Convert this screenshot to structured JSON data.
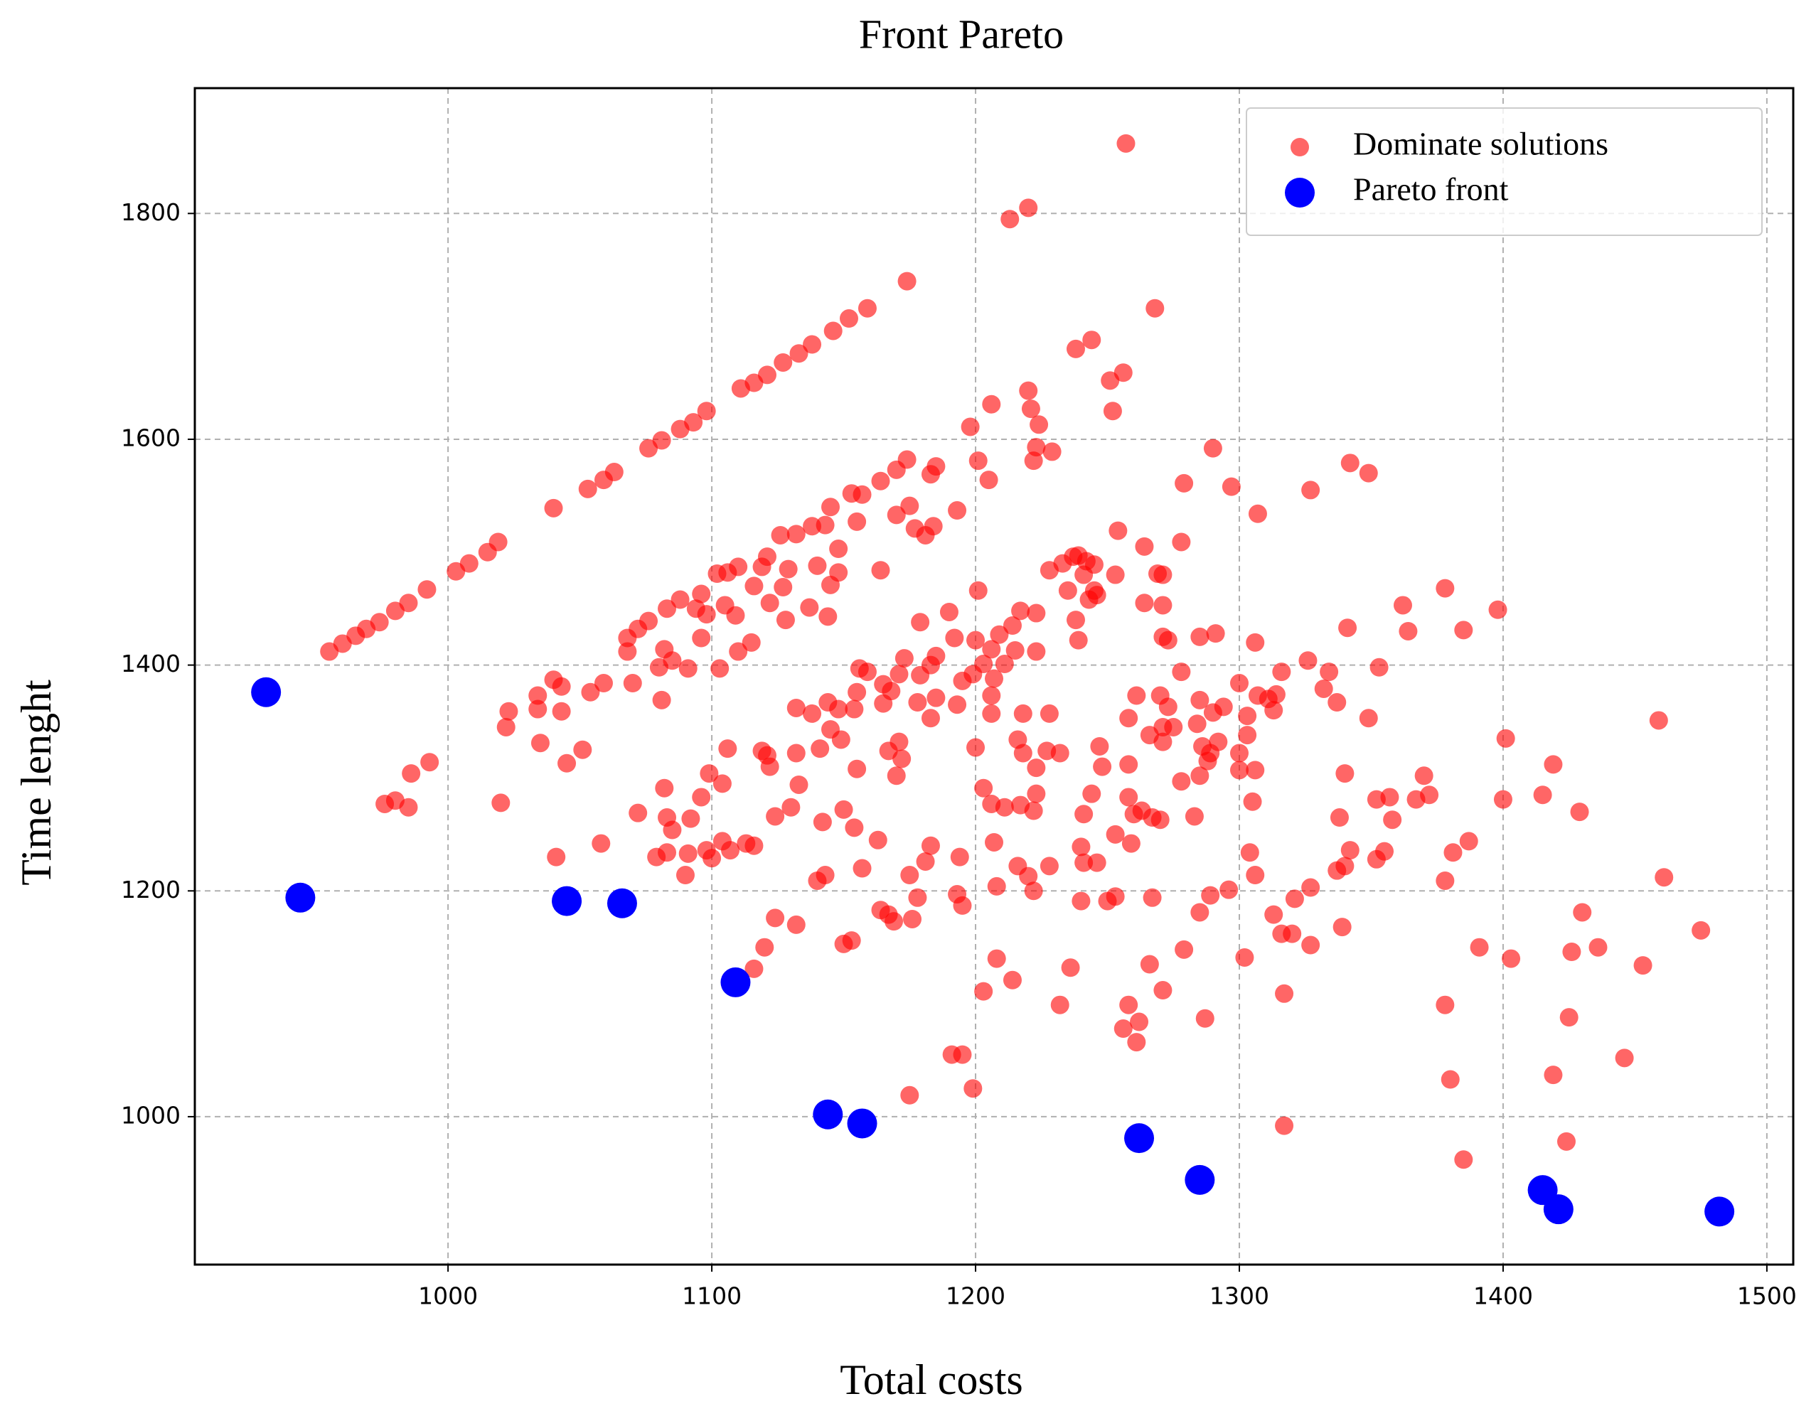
{
  "chart_data": {
    "type": "scatter",
    "title": "Front Pareto",
    "xlabel": "Total costs",
    "ylabel": "Time lenght",
    "xlim": [
      904,
      1510
    ],
    "ylim": [
      869,
      1911
    ],
    "xticks": [
      1000,
      1100,
      1200,
      1300,
      1400,
      1500
    ],
    "yticks": [
      1000,
      1200,
      1400,
      1600,
      1800
    ],
    "grid": true,
    "legend": "upper right",
    "series": [
      {
        "name": "Dominate solutions",
        "color": "#ff0000",
        "opacity": 0.6,
        "x": [
          955,
          960,
          965,
          969,
          974,
          980,
          985,
          992,
          1003,
          1008,
          1015,
          1019,
          1040,
          1053,
          1059,
          1063,
          1076,
          1081,
          1088,
          1093,
          1098,
          1111,
          1116,
          1121,
          1127,
          1133,
          1138,
          1146,
          1152,
          1159,
          1174,
          1257,
          1220,
          1213,
          1268,
          1244,
          1238,
          1256,
          1251,
          1220,
          1206,
          1252,
          1221,
          1224,
          1198,
          1229,
          1223,
          1222,
          1290,
          1279,
          1297,
          1307,
          1327,
          1342,
          1349,
          1201,
          1185,
          1183,
          1170,
          1174,
          1164,
          1157,
          1153,
          1155,
          1145,
          1143,
          1138,
          1175,
          1170,
          1177,
          1184,
          1193,
          1181,
          1132,
          1126,
          1121,
          1119,
          1110,
          1106,
          1102,
          1096,
          1094,
          1088,
          1083,
          1076,
          1072,
          1068,
          1068,
          1082,
          1085,
          1096,
          1105,
          1109,
          1098,
          1148,
          1148,
          1145,
          1140,
          1129,
          1116,
          1122,
          1127,
          1137,
          1128,
          1115,
          1110,
          1164,
          1144,
          1205,
          1200,
          1206,
          1203,
          1211,
          1215,
          1217,
          1223,
          1223,
          1214,
          1209,
          1201,
          1190,
          1192,
          1179,
          1185,
          1173,
          1179,
          1183,
          1171,
          1168,
          1165,
          1156,
          1159,
          1155,
          1165,
          1178,
          1185,
          1183,
          1193,
          1195,
          1199,
          1207,
          1206,
          1206,
          1218,
          1228,
          1216,
          1223,
          1218,
          1227,
          1232,
          1200,
          1203,
          1206,
          1211,
          1217,
          1223,
          1222,
          1247,
          1248,
          1258,
          1258,
          1261,
          1270,
          1273,
          1266,
          1271,
          1275,
          1271,
          1284,
          1285,
          1290,
          1294,
          1300,
          1303,
          1303,
          1286,
          1289,
          1292,
          1288,
          1278,
          1285,
          1300,
          1306,
          1300,
          1305,
          1307,
          1311,
          1313,
          1316,
          1314,
          1326,
          1334,
          1332,
          1337,
          1349,
          1353,
          1341,
          1306,
          1291,
          1285,
          1271,
          1273,
          1278,
          1264,
          1271,
          1269,
          1271,
          1264,
          1278,
          1254,
          1253,
          1245,
          1243,
          1246,
          1242,
          1245,
          1237,
          1239,
          1233,
          1228,
          1241,
          1235,
          1238,
          1239,
          1103,
          1091,
          1080,
          1040,
          1043,
          1034,
          1034,
          1043,
          1054,
          1059,
          1070,
          1081,
          1023,
          1022,
          1035,
          1045,
          1051,
          993,
          986,
          976,
          980,
          985,
          1020,
          1072,
          1041,
          1058,
          1082,
          1083,
          1085,
          1079,
          1083,
          1092,
          1090,
          1091,
          1096,
          1099,
          1104,
          1106,
          1098,
          1100,
          1104,
          1107,
          1113,
          1116,
          1119,
          1122,
          1121,
          1124,
          1130,
          1132,
          1133,
          1132,
          1138,
          1141,
          1142,
          1140,
          1143,
          1145,
          1149,
          1144,
          1148,
          1150,
          1154,
          1155,
          1157,
          1163,
          1154,
          1167,
          1171,
          1172,
          1170,
          1175,
          1178,
          1181,
          1183,
          1164,
          1167,
          1169,
          1176,
          1193,
          1195,
          1194,
          1207,
          1208,
          1216,
          1220,
          1222,
          1228,
          1240,
          1241,
          1246,
          1250,
          1253,
          1253,
          1259,
          1258,
          1260,
          1263,
          1267,
          1270,
          1267,
          1241,
          1244,
          1240,
          1283,
          1289,
          1296,
          1285,
          1279,
          1266,
          1271,
          1258,
          1256,
          1262,
          1261,
          1287,
          1302,
          1317,
          1306,
          1304,
          1313,
          1316,
          1320,
          1321,
          1327,
          1327,
          1337,
          1340,
          1339,
          1338,
          1342,
          1340,
          1352,
          1357,
          1358,
          1355,
          1352,
          1367,
          1370,
          1372,
          1362,
          1364,
          1378,
          1385,
          1398,
          1401,
          1400,
          1415,
          1419,
          1429,
          1387,
          1381,
          1378,
          1378,
          1380,
          1391,
          1403,
          1419,
          1425,
          1426,
          1430,
          1436,
          1453,
          1446,
          1461,
          1459,
          1475,
          1385,
          1424,
          1317,
          1124,
          1132,
          1120,
          1116,
          1150,
          1153,
          1175,
          1191,
          1195,
          1199,
          1203,
          1208,
          1214,
          1232,
          1236
        ],
        "values": [
          1412,
          1419,
          1426,
          1432,
          1438,
          1448,
          1455,
          1467,
          1483,
          1490,
          1500,
          1509,
          1539,
          1556,
          1564,
          1571,
          1592,
          1599,
          1609,
          1615,
          1625,
          1645,
          1650,
          1657,
          1668,
          1676,
          1684,
          1696,
          1707,
          1716,
          1740,
          1862,
          1805,
          1795,
          1716,
          1688,
          1680,
          1659,
          1652,
          1643,
          1631,
          1625,
          1627,
          1613,
          1611,
          1589,
          1593,
          1581,
          1592,
          1561,
          1558,
          1534,
          1555,
          1579,
          1570,
          1581,
          1576,
          1569,
          1573,
          1582,
          1563,
          1551,
          1552,
          1527,
          1540,
          1524,
          1523,
          1541,
          1533,
          1521,
          1523,
          1537,
          1515,
          1516,
          1515,
          1496,
          1487,
          1487,
          1482,
          1481,
          1463,
          1450,
          1458,
          1450,
          1439,
          1432,
          1424,
          1412,
          1414,
          1404,
          1424,
          1453,
          1444,
          1445,
          1503,
          1482,
          1471,
          1488,
          1485,
          1470,
          1455,
          1469,
          1451,
          1440,
          1420,
          1412,
          1484,
          1443,
          1564,
          1422,
          1414,
          1401,
          1401,
          1413,
          1448,
          1446,
          1412,
          1435,
          1427,
          1466,
          1447,
          1424,
          1438,
          1408,
          1406,
          1391,
          1400,
          1392,
          1377,
          1366,
          1397,
          1394,
          1376,
          1383,
          1367,
          1371,
          1353,
          1365,
          1386,
          1392,
          1388,
          1373,
          1357,
          1357,
          1357,
          1334,
          1309,
          1322,
          1324,
          1322,
          1327,
          1291,
          1277,
          1274,
          1276,
          1286,
          1271,
          1328,
          1310,
          1353,
          1312,
          1373,
          1373,
          1363,
          1338,
          1345,
          1345,
          1332,
          1348,
          1369,
          1358,
          1363,
          1384,
          1355,
          1338,
          1328,
          1322,
          1332,
          1315,
          1297,
          1302,
          1322,
          1307,
          1307,
          1279,
          1373,
          1370,
          1360,
          1394,
          1374,
          1404,
          1394,
          1379,
          1367,
          1353,
          1398,
          1433,
          1420,
          1428,
          1425,
          1425,
          1422,
          1394,
          1455,
          1453,
          1481,
          1480,
          1505,
          1509,
          1519,
          1480,
          1466,
          1458,
          1462,
          1492,
          1489,
          1496,
          1497,
          1490,
          1484,
          1480,
          1466,
          1440,
          1422,
          1397,
          1397,
          1398,
          1387,
          1381,
          1373,
          1361,
          1359,
          1376,
          1384,
          1384,
          1369,
          1359,
          1345,
          1331,
          1313,
          1325,
          1314,
          1304,
          1277,
          1280,
          1274,
          1278,
          1269,
          1230,
          1242,
          1291,
          1265,
          1254,
          1230,
          1234,
          1264,
          1214,
          1233,
          1283,
          1304,
          1295,
          1326,
          1236,
          1229,
          1244,
          1236,
          1242,
          1240,
          1324,
          1310,
          1320,
          1266,
          1274,
          1322,
          1294,
          1362,
          1357,
          1326,
          1261,
          1209,
          1214,
          1343,
          1334,
          1367,
          1361,
          1272,
          1256,
          1308,
          1220,
          1245,
          1361,
          1324,
          1332,
          1317,
          1302,
          1214,
          1194,
          1226,
          1240,
          1183,
          1179,
          1173,
          1175,
          1197,
          1187,
          1230,
          1243,
          1204,
          1222,
          1213,
          1200,
          1222,
          1191,
          1225,
          1225,
          1191,
          1195,
          1250,
          1242,
          1283,
          1268,
          1271,
          1265,
          1263,
          1194,
          1268,
          1286,
          1239,
          1266,
          1196,
          1201,
          1181,
          1148,
          1135,
          1112,
          1099,
          1078,
          1084,
          1066,
          1087,
          1141,
          1109,
          1214,
          1234,
          1179,
          1162,
          1162,
          1193,
          1203,
          1152,
          1218,
          1222,
          1168,
          1265,
          1236,
          1304,
          1281,
          1283,
          1263,
          1235,
          1228,
          1281,
          1302,
          1285,
          1453,
          1430,
          1468,
          1431,
          1449,
          1335,
          1281,
          1285,
          1312,
          1270,
          1244,
          1234,
          1209,
          1099,
          1033,
          1150,
          1140,
          1037,
          1088,
          1146,
          1181,
          1150,
          1134,
          1052,
          1212,
          1351,
          1165,
          962,
          978,
          992,
          1176,
          1170,
          1150,
          1131,
          1153,
          1156,
          1019,
          1055,
          1055,
          1025,
          1111,
          1140,
          1121,
          1099,
          1132
        ]
      },
      {
        "name": "Pareto front",
        "color": "#0000ff",
        "opacity": 1,
        "x": [
          931,
          944,
          1045,
          1066,
          1109,
          1144,
          1157,
          1262,
          1285,
          1415,
          1421,
          1482
        ],
        "values": [
          1376,
          1194,
          1191,
          1189,
          1119,
          1002,
          994,
          981,
          944,
          935,
          918,
          916
        ]
      }
    ]
  }
}
